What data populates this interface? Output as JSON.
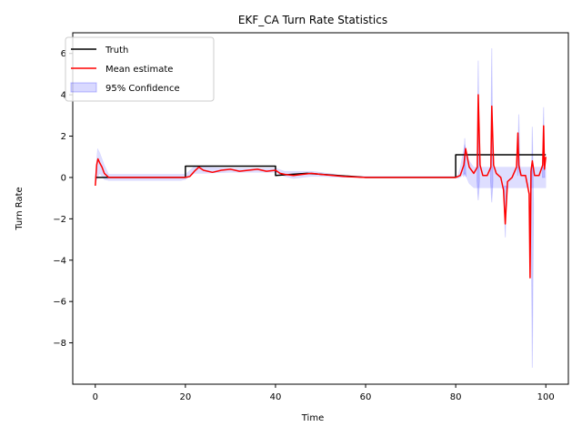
{
  "chart_data": {
    "type": "line",
    "title": "EKF_CA Turn Rate Statistics",
    "xlabel": "Time",
    "ylabel": "Turn Rate",
    "xlim": [
      -5,
      105
    ],
    "ylim": [
      -10,
      7
    ],
    "xticks": [
      0,
      20,
      40,
      60,
      80,
      100
    ],
    "yticks": [
      -8,
      -6,
      -4,
      -2,
      0,
      2,
      4,
      6
    ],
    "grid": false,
    "legend": "top-left",
    "colors": {
      "truth": "#000000",
      "mean": "#ff0000",
      "band": "#0000ff"
    },
    "series": [
      {
        "name": "Truth",
        "x": [
          0,
          20,
          20,
          40,
          40,
          47,
          60,
          80,
          80,
          100
        ],
        "y": [
          0,
          0,
          0.55,
          0.55,
          0.1,
          0.2,
          0.0,
          0.0,
          1.1,
          1.1
        ]
      },
      {
        "name": "Mean estimate",
        "x": [
          0,
          0.3,
          0.6,
          1.0,
          1.5,
          2.0,
          3.0,
          5.0,
          8.0,
          12.0,
          16.0,
          19.0,
          20.0,
          21.0,
          22.0,
          23.0,
          24.0,
          26.0,
          28.0,
          30.0,
          32.0,
          34.0,
          36.0,
          38.0,
          40.0,
          41.0,
          42.0,
          44.0,
          46.0,
          48.0,
          50.0,
          55.0,
          60.0,
          70.0,
          80.0,
          81.0,
          81.8,
          82.2,
          83.0,
          84.0,
          84.8,
          85.0,
          85.4,
          86.0,
          87.0,
          87.8,
          88.0,
          88.4,
          89.0,
          90.0,
          90.6,
          91.0,
          91.5,
          92.5,
          93.5,
          93.8,
          94.0,
          94.5,
          95.5,
          96.3,
          96.5,
          96.7,
          97.0,
          97.5,
          98.5,
          99.3,
          99.5,
          99.7,
          100.0
        ],
        "y": [
          -0.4,
          0.6,
          0.9,
          0.7,
          0.5,
          0.2,
          0.0,
          0.0,
          0.0,
          0.0,
          0.0,
          0.0,
          0.0,
          0.05,
          0.3,
          0.5,
          0.35,
          0.25,
          0.35,
          0.4,
          0.3,
          0.35,
          0.4,
          0.3,
          0.35,
          0.2,
          0.15,
          0.1,
          0.15,
          0.2,
          0.15,
          0.05,
          0.0,
          0.0,
          0.0,
          0.1,
          0.6,
          1.4,
          0.5,
          0.2,
          0.5,
          4.0,
          0.6,
          0.1,
          0.1,
          0.5,
          3.45,
          0.6,
          0.2,
          0.0,
          -0.6,
          -2.25,
          -0.2,
          0.0,
          0.5,
          2.15,
          0.6,
          0.1,
          0.1,
          -0.8,
          -4.85,
          0.3,
          0.8,
          0.1,
          0.1,
          0.6,
          2.5,
          0.4,
          1.0
        ]
      }
    ],
    "confidence_band": {
      "name": "95% Confidence",
      "x": [
        0,
        0.5,
        1,
        2,
        3,
        5,
        10,
        15,
        19,
        20,
        22,
        24,
        30,
        36,
        40,
        42,
        44,
        46,
        48,
        50,
        55,
        60,
        70,
        80,
        80.5,
        81,
        82,
        83,
        84,
        100
      ],
      "lower": [
        -0.3,
        0.0,
        0.2,
        -0.1,
        -0.15,
        -0.15,
        -0.15,
        -0.15,
        -0.15,
        -0.1,
        0.2,
        0.2,
        0.25,
        0.25,
        0.25,
        0.05,
        -0.05,
        0.0,
        0.05,
        0.05,
        0.0,
        0.0,
        0.0,
        0.0,
        -0.05,
        0.0,
        0.2,
        -0.3,
        -0.5,
        -0.5
      ],
      "upper": [
        0.1,
        1.4,
        1.2,
        0.6,
        0.15,
        0.15,
        0.15,
        0.15,
        0.15,
        0.15,
        0.55,
        0.5,
        0.45,
        0.45,
        0.45,
        0.3,
        0.3,
        0.3,
        0.3,
        0.25,
        0.1,
        0.05,
        0.05,
        0.05,
        0.1,
        0.5,
        1.6,
        0.8,
        0.5,
        0.5
      ]
    },
    "confidence_spikes": [
      {
        "x": 82.0,
        "lower": 0.2,
        "upper": 1.9
      },
      {
        "x": 85.0,
        "lower": -1.1,
        "upper": 5.65
      },
      {
        "x": 88.0,
        "lower": -1.2,
        "upper": 6.25
      },
      {
        "x": 91.0,
        "lower": -2.9,
        "upper": -0.4
      },
      {
        "x": 94.0,
        "lower": 0.5,
        "upper": 3.05
      },
      {
        "x": 97.0,
        "lower": -9.2,
        "upper": 2.45
      },
      {
        "x": 99.5,
        "lower": 0.0,
        "upper": 3.4
      }
    ]
  }
}
